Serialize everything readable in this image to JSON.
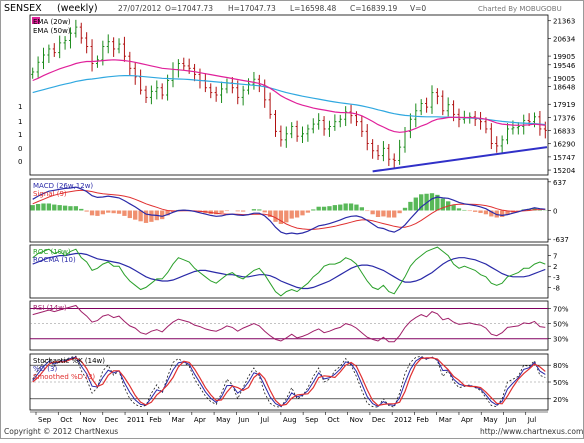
{
  "header": {
    "symbol": "SENSEX",
    "period": "(weekly)",
    "date": "27/07/2012",
    "open": "O=17047.73",
    "high": "H=17047.73",
    "low": "L=16598.48",
    "close": "C=16839.19",
    "volume": "V=0",
    "charted_by": "Charted By MOBUGOBU"
  },
  "footer": {
    "copyright": "Copyright © 2012 ChartNexus",
    "url": "http://www.chartnexus.com"
  },
  "colors": {
    "candle_up": "#1a8a1a",
    "candle_down": "#b01010",
    "ema20": "#e0209a",
    "ema50": "#30a8e0",
    "trend": "#3030c8",
    "macd": "#2a2aa8",
    "signal": "#e03030",
    "hist_pos": "#58b858",
    "hist_neg": "#f09070",
    "roc": "#2aa02a",
    "rocma": "#2a2aa8",
    "rsi": "#a0206a",
    "stoch_k": "#2a2aa8",
    "stoch_d": "#e03030",
    "band": "#800060"
  },
  "chart_data": [
    {
      "type": "candlestick",
      "title": "SENSEX (weekly)",
      "legend": [
        "EMA (20w)",
        "EMA (50w)"
      ],
      "y_ticks": [
        21363,
        20634,
        19905,
        19546,
        19005,
        18648,
        17919,
        17376,
        16833,
        16290,
        15747,
        15204
      ],
      "x_ticks": [
        "Sep",
        "Oct",
        "Nov",
        "Dec",
        "2011",
        "Feb",
        "Mar",
        "Apr",
        "May",
        "Jun",
        "Jul",
        "Aug",
        "Sep",
        "Oct",
        "Nov",
        "Dec",
        "2012",
        "Feb",
        "Mar",
        "Apr",
        "May",
        "Jun",
        "Jul"
      ],
      "close": [
        19250,
        19650,
        19950,
        20200,
        20050,
        20450,
        20550,
        20850,
        21100,
        20650,
        20300,
        19600,
        19750,
        20300,
        20500,
        20200,
        20400,
        19900,
        19400,
        19050,
        18500,
        18200,
        18450,
        18600,
        18300,
        18900,
        19350,
        19600,
        19500,
        19400,
        19150,
        18900,
        18600,
        18400,
        18300,
        18550,
        18800,
        18600,
        18200,
        18500,
        18750,
        18950,
        18700,
        18100,
        17500,
        16800,
        16450,
        16700,
        17000,
        16600,
        16700,
        16900,
        17100,
        17250,
        16900,
        17000,
        17200,
        17300,
        17600,
        17450,
        17200,
        16800,
        16300,
        16000,
        15800,
        16100,
        15650,
        15600,
        16150,
        16800,
        17300,
        17650,
        17950,
        17800,
        18400,
        18250,
        17650,
        17900,
        17500,
        17300,
        17350,
        17400,
        17300,
        17200,
        16900,
        16300,
        16200,
        16450,
        16900,
        16950,
        17000,
        17250,
        17200,
        17400,
        16900,
        16840
      ],
      "ema20_approx": [
        18900,
        18990,
        19100,
        19200,
        19290,
        19380,
        19450,
        19520,
        19600,
        19650,
        19680,
        19680,
        19700,
        19720,
        19740,
        19750,
        19740,
        19720,
        19690,
        19650,
        19600,
        19550,
        19500,
        19450,
        19400,
        19380,
        19360,
        19340,
        19320,
        19290,
        19260,
        19220,
        19180,
        19140,
        19100,
        19060,
        19020,
        18980,
        18940,
        18900,
        18860,
        18820,
        18780,
        18700,
        18580,
        18430,
        18270,
        18150,
        18050,
        17950,
        17880,
        17820,
        17760,
        17720,
        17680,
        17640,
        17600,
        17580,
        17570,
        17560,
        17520,
        17440,
        17330,
        17210,
        17080,
        16980,
        16870,
        16790,
        16760,
        16780,
        16840,
        16920,
        17020,
        17100,
        17220,
        17300,
        17330,
        17370,
        17380,
        17380,
        17370,
        17370,
        17360,
        17340,
        17300,
        17230,
        17150,
        17100,
        17080,
        17060,
        17050,
        17060,
        17070,
        17100,
        17080,
        17050
      ],
      "ema50_approx": [
        18400,
        18460,
        18520,
        18580,
        18640,
        18700,
        18750,
        18800,
        18860,
        18900,
        18940,
        18960,
        18990,
        19020,
        19050,
        19070,
        19090,
        19100,
        19100,
        19090,
        19070,
        19050,
        19030,
        19010,
        18990,
        18980,
        18970,
        18960,
        18950,
        18940,
        18920,
        18900,
        18880,
        18860,
        18840,
        18820,
        18800,
        18780,
        18760,
        18740,
        18720,
        18700,
        18680,
        18640,
        18590,
        18530,
        18460,
        18400,
        18350,
        18300,
        18250,
        18210,
        18170,
        18130,
        18090,
        18050,
        18010,
        17980,
        17950,
        17920,
        17890,
        17850,
        17800,
        17750,
        17690,
        17640,
        17580,
        17530,
        17490,
        17460,
        17440,
        17420,
        17410,
        17400,
        17400,
        17400,
        17390,
        17390,
        17380,
        17370,
        17360,
        17350,
        17340,
        17320,
        17300,
        17270,
        17240,
        17210,
        17190,
        17170,
        17150,
        17140,
        17130,
        17120,
        17100,
        17080
      ]
    },
    {
      "type": "line",
      "title": "MACD (26w,12w)",
      "legend": [
        "MACD (26w,12w)",
        "Signal (9)"
      ],
      "y_ticks": [
        637,
        0,
        -637
      ],
      "macd": [
        250,
        320,
        380,
        430,
        450,
        470,
        490,
        500,
        520,
        480,
        420,
        330,
        290,
        300,
        320,
        300,
        280,
        220,
        150,
        80,
        0,
        -80,
        -100,
        -110,
        -130,
        -90,
        -40,
        0,
        10,
        0,
        -20,
        -50,
        -80,
        -110,
        -130,
        -120,
        -90,
        -80,
        -100,
        -110,
        -90,
        -60,
        -60,
        -120,
        -230,
        -370,
        -480,
        -520,
        -500,
        -520,
        -500,
        -460,
        -400,
        -340,
        -320,
        -290,
        -250,
        -210,
        -160,
        -130,
        -120,
        -150,
        -220,
        -300,
        -380,
        -400,
        -450,
        -480,
        -420,
        -320,
        -180,
        -50,
        80,
        170,
        260,
        300,
        280,
        270,
        230,
        180,
        150,
        130,
        110,
        80,
        40,
        -30,
        -90,
        -110,
        -90,
        -60,
        -30,
        10,
        30,
        60,
        40,
        30
      ],
      "signal": [
        150,
        200,
        250,
        300,
        340,
        370,
        400,
        420,
        440,
        450,
        440,
        420,
        390,
        370,
        360,
        350,
        340,
        320,
        290,
        250,
        200,
        150,
        110,
        70,
        30,
        0,
        -10,
        -10,
        -5,
        -5,
        -10,
        -20,
        -30,
        -45,
        -60,
        -75,
        -80,
        -80,
        -85,
        -90,
        -90,
        -85,
        -80,
        -85,
        -110,
        -160,
        -230,
        -300,
        -350,
        -390,
        -410,
        -420,
        -420,
        -410,
        -390,
        -370,
        -350,
        -320,
        -290,
        -260,
        -230,
        -210,
        -210,
        -230,
        -260,
        -290,
        -320,
        -350,
        -370,
        -370,
        -340,
        -290,
        -220,
        -140,
        -60,
        10,
        60,
        100,
        130,
        140,
        140,
        140,
        135,
        125,
        110,
        80,
        40,
        10,
        -10,
        -20,
        -20,
        -10,
        0,
        15,
        20,
        25
      ]
    },
    {
      "type": "line",
      "title": "ROC (10w)",
      "legend": [
        "ROC (10w)",
        "ROCMA (10)"
      ],
      "y_ticks": [
        7,
        2,
        -3,
        -8
      ],
      "roc": [
        6,
        8,
        9,
        10,
        8,
        9,
        7,
        9,
        10,
        6,
        4,
        0,
        1,
        3,
        4,
        2,
        2,
        -2,
        -5,
        -7,
        -9,
        -8,
        -6,
        -4,
        -4,
        -1,
        3,
        6,
        5,
        4,
        1,
        -1,
        -3,
        -5,
        -6,
        -4,
        -2,
        -1,
        -3,
        -4,
        -2,
        0,
        1,
        -2,
        -6,
        -10,
        -12,
        -10,
        -9,
        -10,
        -8,
        -6,
        -3,
        -1,
        2,
        3,
        3,
        4,
        6,
        5,
        3,
        -1,
        -5,
        -8,
        -9,
        -7,
        -10,
        -11,
        -7,
        -3,
        2,
        5,
        7,
        9,
        10,
        11,
        9,
        7,
        3,
        1,
        2,
        1,
        0,
        -2,
        -3,
        -6,
        -7,
        -6,
        -3,
        -2,
        -1,
        1,
        1,
        3,
        4,
        3
      ],
      "rocma": [
        3,
        4,
        5,
        6,
        6.5,
        7,
        7,
        7.5,
        8,
        8,
        7.5,
        6.5,
        5.5,
        5,
        4.5,
        4,
        3.5,
        2.5,
        1.5,
        0,
        -1.5,
        -3,
        -4,
        -4.5,
        -5,
        -5,
        -4.5,
        -3.5,
        -2.5,
        -1.5,
        -0.5,
        0,
        0,
        -0.5,
        -1,
        -1.5,
        -2,
        -2,
        -2.5,
        -3,
        -3,
        -2.5,
        -2,
        -2,
        -2.5,
        -3.5,
        -5,
        -6,
        -7,
        -8,
        -8.5,
        -8.5,
        -8,
        -7,
        -6,
        -5,
        -3.5,
        -2,
        -0.5,
        1,
        2,
        2.5,
        2.5,
        2,
        1,
        0,
        -1.5,
        -3,
        -4.5,
        -5.5,
        -5.5,
        -5,
        -4,
        -2.5,
        -1,
        1,
        3,
        4.5,
        5.5,
        6,
        6,
        5.5,
        5,
        4,
        3,
        1.5,
        0,
        -1.5,
        -2.5,
        -3,
        -3,
        -3,
        -2.5,
        -1.5,
        -0.5,
        0.5
      ]
    },
    {
      "type": "line",
      "title": "RSI (14w)",
      "y_ticks": [
        "70%",
        "50%",
        "30%"
      ],
      "rsi": [
        62,
        64,
        66,
        68,
        66,
        68,
        70,
        72,
        74,
        66,
        60,
        52,
        54,
        60,
        62,
        58,
        60,
        53,
        47,
        44,
        38,
        36,
        40,
        42,
        39,
        46,
        52,
        56,
        54,
        52,
        48,
        46,
        43,
        41,
        40,
        43,
        47,
        45,
        40,
        44,
        47,
        50,
        47,
        40,
        34,
        29,
        27,
        31,
        36,
        31,
        33,
        36,
        40,
        43,
        38,
        40,
        43,
        45,
        50,
        48,
        44,
        38,
        32,
        29,
        27,
        32,
        26,
        26,
        34,
        45,
        53,
        58,
        62,
        59,
        66,
        63,
        55,
        57,
        52,
        49,
        50,
        51,
        49,
        48,
        44,
        36,
        34,
        38,
        45,
        46,
        47,
        51,
        50,
        53,
        46,
        45
      ]
    },
    {
      "type": "line",
      "title": "Stochastic %K (14w)",
      "legend": [
        "Stochastic %K (14w)",
        "%D (3)",
        "Smoothed %D (3)"
      ],
      "y_ticks": [
        "80%",
        "50%",
        "20%"
      ],
      "k": [
        55,
        72,
        85,
        92,
        78,
        88,
        90,
        94,
        96,
        70,
        55,
        30,
        40,
        70,
        80,
        62,
        70,
        40,
        20,
        10,
        6,
        8,
        30,
        45,
        30,
        60,
        85,
        92,
        85,
        78,
        55,
        40,
        25,
        15,
        10,
        30,
        55,
        45,
        20,
        40,
        60,
        75,
        60,
        30,
        12,
        6,
        5,
        20,
        40,
        20,
        25,
        40,
        60,
        75,
        50,
        55,
        70,
        78,
        92,
        80,
        60,
        35,
        12,
        6,
        5,
        20,
        8,
        5,
        30,
        65,
        85,
        94,
        96,
        90,
        95,
        88,
        60,
        70,
        50,
        40,
        42,
        45,
        40,
        35,
        22,
        8,
        6,
        20,
        50,
        55,
        60,
        80,
        78,
        88,
        62,
        58
      ],
      "d_smooth": [
        50,
        58,
        70,
        82,
        86,
        86,
        86,
        90,
        93,
        87,
        74,
        55,
        42,
        46,
        62,
        70,
        70,
        58,
        43,
        26,
        14,
        9,
        14,
        27,
        35,
        45,
        58,
        77,
        87,
        85,
        73,
        57,
        40,
        27,
        17,
        18,
        32,
        43,
        40,
        35,
        40,
        58,
        66,
        56,
        35,
        17,
        8,
        10,
        21,
        27,
        28,
        29,
        40,
        58,
        61,
        60,
        58,
        68,
        80,
        85,
        78,
        58,
        36,
        17,
        8,
        10,
        11,
        11,
        14,
        33,
        60,
        81,
        92,
        93,
        93,
        91,
        81,
        72,
        60,
        53,
        44,
        42,
        42,
        40,
        32,
        22,
        12,
        11,
        25,
        41,
        55,
        65,
        73,
        82,
        77,
        69
      ]
    }
  ]
}
